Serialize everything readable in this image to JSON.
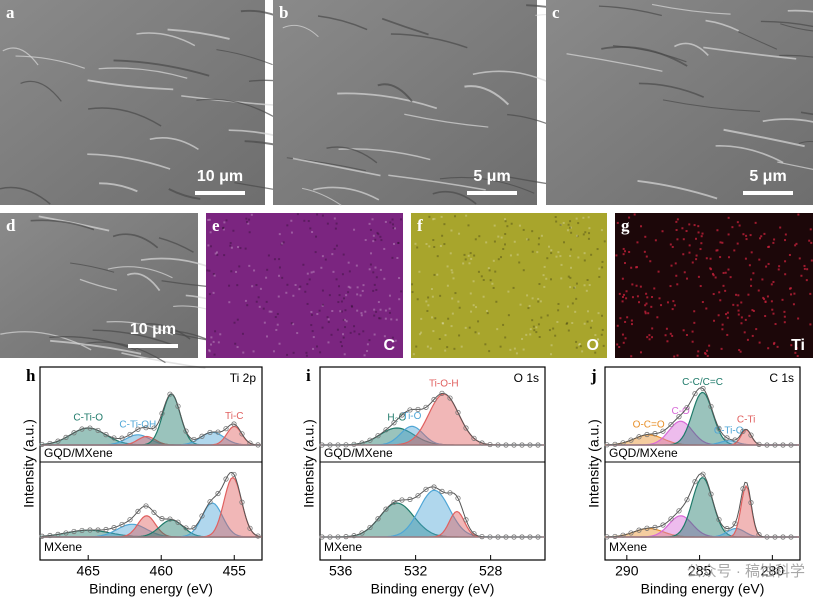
{
  "images": [
    {
      "label": "a",
      "scale_bar": "10 μm"
    },
    {
      "label": "b",
      "scale_bar": "5 μm"
    },
    {
      "label": "c",
      "scale_bar": "5 μm"
    },
    {
      "label": "d",
      "scale_bar": "10 μm"
    },
    {
      "label": "e",
      "element": "C"
    },
    {
      "label": "f",
      "element": "O"
    },
    {
      "label": "g",
      "element": "Ti"
    }
  ],
  "chart_data": [
    {
      "type": "xps",
      "label": "h",
      "title": "Ti 2p",
      "x_label": "Binding energy (eV)",
      "y_label": "Intensity (a.u.)",
      "xlim": [
        468.3,
        453.1
      ],
      "xticks": [
        465,
        460,
        455
      ],
      "series": [
        {
          "name": "GQD/MXene",
          "peaks": [
            {
              "name": "C-Ti-O",
              "color": "#1f7a6a",
              "x": 465,
              "value": 0.2,
              "width": 1.2
            },
            {
              "name": "C-Ti-OH",
              "color": "#4fa6d6",
              "x": 461.6,
              "value": 0.12,
              "width": 0.8
            },
            {
              "name": null,
              "color": "#e0605f",
              "x": 461,
              "value": 0.1,
              "width": 0.6
            },
            {
              "name": null,
              "color": "#1f7a6a",
              "x": 459.3,
              "value": 0.6,
              "width": 0.6
            },
            {
              "name": null,
              "color": "#4fa6d6",
              "x": 456.5,
              "value": 0.15,
              "width": 0.8
            },
            {
              "name": "Ti-C",
              "color": "#e0605f",
              "x": 455,
              "value": 0.22,
              "width": 0.5
            }
          ]
        },
        {
          "name": "MXene",
          "peaks": [
            {
              "name": null,
              "color": "#1f7a6a",
              "x": 465,
              "value": 0.08,
              "width": 1.5
            },
            {
              "name": null,
              "color": "#4fa6d6",
              "x": 462,
              "value": 0.15,
              "width": 1
            },
            {
              "name": null,
              "color": "#e0605f",
              "x": 461,
              "value": 0.25,
              "width": 0.6
            },
            {
              "name": null,
              "color": "#1f7a6a",
              "x": 459.3,
              "value": 0.2,
              "width": 0.8
            },
            {
              "name": null,
              "color": "#4fa6d6",
              "x": 456.5,
              "value": 0.4,
              "width": 0.7
            },
            {
              "name": null,
              "color": "#e0605f",
              "x": 455.1,
              "value": 0.7,
              "width": 0.6
            }
          ]
        }
      ]
    },
    {
      "type": "xps",
      "label": "i",
      "title": "O 1s",
      "x_label": "Binding energy (eV)",
      "y_label": "Intensity (a.u.)",
      "xlim": [
        537.1,
        525.1
      ],
      "xticks": [
        536,
        532,
        528
      ],
      "series": [
        {
          "name": "GQD/MXene",
          "peaks": [
            {
              "name": "H₂O",
              "color": "#1f7a6a",
              "x": 533,
              "value": 0.2,
              "width": 0.9
            },
            {
              "name": "Ti-O",
              "color": "#4fa6d6",
              "x": 532.2,
              "value": 0.22,
              "width": 0.6
            },
            {
              "name": "Ti-O-H",
              "color": "#e0605f",
              "x": 530.5,
              "value": 0.6,
              "width": 0.8
            }
          ]
        },
        {
          "name": "MXene",
          "peaks": [
            {
              "name": null,
              "color": "#1f7a6a",
              "x": 533,
              "value": 0.4,
              "width": 0.9
            },
            {
              "name": null,
              "color": "#4fa6d6",
              "x": 531,
              "value": 0.55,
              "width": 0.8
            },
            {
              "name": null,
              "color": "#e0605f",
              "x": 529.8,
              "value": 0.3,
              "width": 0.4
            }
          ]
        }
      ]
    },
    {
      "type": "xps",
      "label": "j",
      "title": "C 1s",
      "x_label": "Binding energy (eV)",
      "y_label": "Intensity (a.u.)",
      "xlim": [
        291.5,
        278.1
      ],
      "xticks": [
        290,
        285,
        280
      ],
      "series": [
        {
          "name": "GQD/MXene",
          "peaks": [
            {
              "name": "O-C=O",
              "color": "#e8902a",
              "x": 288.5,
              "value": 0.12,
              "width": 1
            },
            {
              "name": "C-O",
              "color": "#d86ad8",
              "x": 286.3,
              "value": 0.28,
              "width": 0.8
            },
            {
              "name": "C-C/C=C",
              "color": "#1f7a6a",
              "x": 284.8,
              "value": 0.62,
              "width": 0.7
            },
            {
              "name": "C-Ti-O",
              "color": "#4fa6d6",
              "x": 283,
              "value": 0.05,
              "width": 0.6
            },
            {
              "name": "C-Ti",
              "color": "#e0605f",
              "x": 281.8,
              "value": 0.18,
              "width": 0.35
            }
          ]
        },
        {
          "name": "MXene",
          "peaks": [
            {
              "name": null,
              "color": "#e8902a",
              "x": 288.5,
              "value": 0.1,
              "width": 1
            },
            {
              "name": null,
              "color": "#d86ad8",
              "x": 286.3,
              "value": 0.25,
              "width": 0.8
            },
            {
              "name": null,
              "color": "#1f7a6a",
              "x": 284.8,
              "value": 0.7,
              "width": 0.7
            },
            {
              "name": null,
              "color": "#4fa6d6",
              "x": 282.5,
              "value": 0.1,
              "width": 0.6
            },
            {
              "name": null,
              "color": "#e0605f",
              "x": 281.8,
              "value": 0.6,
              "width": 0.35
            }
          ]
        }
      ]
    }
  ],
  "watermark": "公众号 · 稿蚀科学"
}
